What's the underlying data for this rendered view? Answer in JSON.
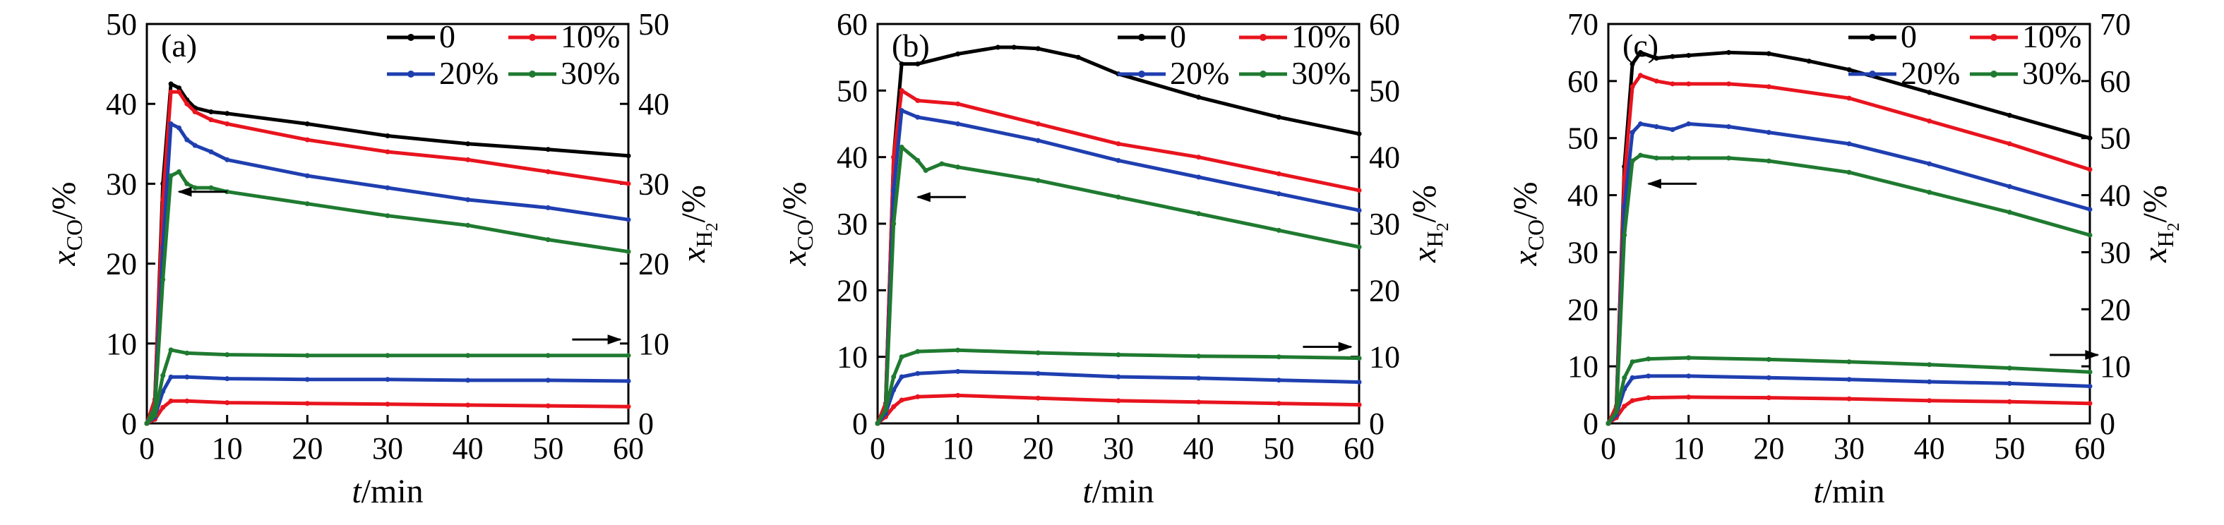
{
  "colors": {
    "s0": "#000000",
    "s10": "#e8141e",
    "s20": "#1f3fb0",
    "s30": "#1f7a30"
  },
  "chart_data": [
    {
      "panel_label": "(a)",
      "type": "line",
      "xlabel": "t/min",
      "ylabel": "xCO/%",
      "ylabel_main": "x",
      "ylabel_sub": "CO",
      "ylabel_tail": "/%",
      "y2label": "xH2/%",
      "y2label_main": "x",
      "y2label_sub": "H",
      "y2label_subsub": "2",
      "y2label_tail": "/%",
      "xlim": [
        0,
        60
      ],
      "ylim": [
        0,
        50
      ],
      "y2lim": [
        0,
        50
      ],
      "xticks": [
        "0",
        "10",
        "20",
        "30",
        "40",
        "50",
        "60"
      ],
      "yticks": [
        "0",
        "10",
        "20",
        "30",
        "40",
        "50"
      ],
      "y2ticks": [
        "0",
        "10",
        "20",
        "30",
        "40",
        "50"
      ],
      "legend": [
        "0",
        "10%",
        "20%",
        "30%"
      ],
      "series_co": [
        {
          "name": "0",
          "x": [
            0,
            1,
            2,
            3,
            4,
            5,
            6,
            8,
            10,
            20,
            30,
            40,
            50,
            60
          ],
          "y": [
            0,
            3,
            30,
            42.5,
            42,
            40.5,
            39.5,
            39,
            38.8,
            37.5,
            36,
            35,
            34.3,
            33.5
          ]
        },
        {
          "name": "10%",
          "x": [
            0,
            1,
            2,
            3,
            4,
            5,
            6,
            8,
            10,
            20,
            30,
            40,
            50,
            60
          ],
          "y": [
            0,
            3,
            28,
            41.5,
            41.5,
            40,
            39,
            38,
            37.5,
            35.5,
            34,
            33,
            31.5,
            30
          ]
        },
        {
          "name": "20%",
          "x": [
            0,
            1,
            2,
            3,
            4,
            5,
            6,
            8,
            10,
            20,
            30,
            40,
            50,
            60
          ],
          "y": [
            0,
            2,
            22,
            37.5,
            37,
            35.5,
            34.8,
            34,
            33,
            31,
            29.5,
            28,
            27,
            25.5
          ]
        },
        {
          "name": "30%",
          "x": [
            0,
            1,
            2,
            3,
            4,
            5,
            6,
            8,
            10,
            20,
            30,
            40,
            50,
            60
          ],
          "y": [
            0,
            2,
            18,
            31,
            31.5,
            30,
            29.5,
            29.5,
            29,
            27.5,
            26,
            24.8,
            23,
            21.5
          ]
        }
      ],
      "series_h2": [
        {
          "name": "10%",
          "x": [
            0,
            1,
            2,
            3,
            5,
            10,
            20,
            30,
            40,
            50,
            60
          ],
          "y": [
            0,
            0.5,
            2,
            2.8,
            2.8,
            2.6,
            2.5,
            2.4,
            2.3,
            2.2,
            2.1
          ]
        },
        {
          "name": "20%",
          "x": [
            0,
            1,
            2,
            3,
            5,
            10,
            20,
            30,
            40,
            50,
            60
          ],
          "y": [
            0,
            0.8,
            4,
            5.8,
            5.8,
            5.6,
            5.5,
            5.5,
            5.4,
            5.4,
            5.3
          ]
        },
        {
          "name": "30%",
          "x": [
            0,
            1,
            2,
            3,
            5,
            10,
            20,
            30,
            40,
            50,
            60
          ],
          "y": [
            0,
            1,
            6,
            9.2,
            8.8,
            8.6,
            8.5,
            8.5,
            8.5,
            8.5,
            8.5
          ]
        }
      ],
      "arrow_left": {
        "x": [
          10,
          4
        ],
        "y": 29
      },
      "arrow_right": {
        "x": 53,
        "y": 10.5
      }
    },
    {
      "panel_label": "(b)",
      "type": "line",
      "xlabel": "t/min",
      "ylabel": "xCO/%",
      "ylabel_main": "x",
      "ylabel_sub": "CO",
      "ylabel_tail": "/%",
      "y2label": "xH2/%",
      "y2label_main": "x",
      "y2label_sub": "H",
      "y2label_subsub": "2",
      "y2label_tail": "/%",
      "xlim": [
        0,
        60
      ],
      "ylim": [
        0,
        60
      ],
      "y2lim": [
        0,
        60
      ],
      "xticks": [
        "0",
        "10",
        "20",
        "30",
        "40",
        "50",
        "60"
      ],
      "yticks": [
        "0",
        "10",
        "20",
        "30",
        "40",
        "50",
        "60"
      ],
      "y2ticks": [
        "0",
        "10",
        "20",
        "30",
        "40",
        "50",
        "60"
      ],
      "legend": [
        "0",
        "10%",
        "20%",
        "30%"
      ],
      "series_co": [
        {
          "name": "0",
          "x": [
            0,
            1,
            2,
            3,
            5,
            10,
            15,
            17,
            20,
            25,
            30,
            40,
            50,
            60
          ],
          "y": [
            0,
            3,
            40,
            54,
            54,
            55.5,
            56.5,
            56.5,
            56.3,
            55,
            52.5,
            49,
            46,
            43.5
          ]
        },
        {
          "name": "10%",
          "x": [
            0,
            1,
            2,
            3,
            5,
            10,
            20,
            30,
            40,
            50,
            60
          ],
          "y": [
            0,
            3,
            40,
            50,
            48.5,
            48,
            45,
            42,
            40,
            37.5,
            35
          ]
        },
        {
          "name": "20%",
          "x": [
            0,
            1,
            2,
            3,
            5,
            10,
            20,
            30,
            40,
            50,
            60
          ],
          "y": [
            0,
            2,
            35,
            47,
            46,
            45,
            42.5,
            39.5,
            37,
            34.5,
            32
          ]
        },
        {
          "name": "30%",
          "x": [
            0,
            1,
            2,
            3,
            5,
            6,
            8,
            10,
            20,
            30,
            40,
            50,
            60
          ],
          "y": [
            0,
            2,
            30,
            41.5,
            39.5,
            38,
            39,
            38.5,
            36.5,
            34,
            31.5,
            29,
            26.5
          ]
        }
      ],
      "series_h2": [
        {
          "name": "10%",
          "x": [
            0,
            1,
            2,
            3,
            5,
            10,
            20,
            30,
            40,
            50,
            60
          ],
          "y": [
            0,
            1,
            2.5,
            3.5,
            4,
            4.2,
            3.8,
            3.4,
            3.2,
            3,
            2.8
          ]
        },
        {
          "name": "20%",
          "x": [
            0,
            1,
            2,
            3,
            5,
            10,
            20,
            30,
            40,
            50,
            60
          ],
          "y": [
            0,
            1.5,
            5,
            7,
            7.5,
            7.8,
            7.5,
            7,
            6.8,
            6.5,
            6.2
          ]
        },
        {
          "name": "30%",
          "x": [
            0,
            1,
            2,
            3,
            5,
            10,
            20,
            30,
            40,
            50,
            60
          ],
          "y": [
            0,
            2,
            7,
            10,
            10.8,
            11,
            10.6,
            10.3,
            10.1,
            10,
            9.8
          ]
        }
      ],
      "arrow_left": {
        "x": [
          11,
          5
        ],
        "y": 34
      },
      "arrow_right": {
        "x": 53,
        "y": 11.5
      }
    },
    {
      "panel_label": "(c)",
      "type": "line",
      "xlabel": "t/min",
      "ylabel": "xCO/%",
      "ylabel_main": "x",
      "ylabel_sub": "CO",
      "ylabel_tail": "/%",
      "y2label": "xH2/%",
      "y2label_main": "x",
      "y2label_sub": "H",
      "y2label_subsub": "2",
      "y2label_tail": "/%",
      "xlim": [
        0,
        60
      ],
      "ylim": [
        0,
        70
      ],
      "y2lim": [
        0,
        70
      ],
      "xticks": [
        "0",
        "10",
        "20",
        "30",
        "40",
        "50",
        "60"
      ],
      "yticks": [
        "0",
        "10",
        "20",
        "30",
        "40",
        "50",
        "60",
        "70"
      ],
      "y2ticks": [
        "0",
        "10",
        "20",
        "30",
        "40",
        "50",
        "60",
        "70"
      ],
      "legend": [
        "0",
        "10%",
        "20%",
        "30%"
      ],
      "series_co": [
        {
          "name": "0",
          "x": [
            0,
            1,
            2,
            3,
            4,
            6,
            8,
            10,
            15,
            20,
            25,
            30,
            40,
            50,
            60
          ],
          "y": [
            0,
            3,
            45,
            63,
            65,
            64,
            64.3,
            64.5,
            65,
            64.8,
            63.5,
            62,
            58,
            54,
            50
          ]
        },
        {
          "name": "10%",
          "x": [
            0,
            1,
            2,
            3,
            4,
            6,
            8,
            10,
            15,
            20,
            30,
            40,
            50,
            60
          ],
          "y": [
            0,
            3,
            43,
            59,
            61,
            60,
            59.5,
            59.5,
            59.5,
            59,
            57,
            53,
            49,
            44.5
          ]
        },
        {
          "name": "20%",
          "x": [
            0,
            1,
            2,
            3,
            4,
            6,
            8,
            10,
            15,
            20,
            30,
            40,
            50,
            60
          ],
          "y": [
            0,
            2,
            38,
            51,
            52.5,
            52,
            51.5,
            52.5,
            52,
            51,
            49,
            45.5,
            41.5,
            37.5
          ]
        },
        {
          "name": "30%",
          "x": [
            0,
            1,
            2,
            3,
            4,
            6,
            8,
            10,
            15,
            20,
            30,
            40,
            50,
            60
          ],
          "y": [
            0,
            2,
            33,
            46,
            47,
            46.5,
            46.5,
            46.5,
            46.5,
            46,
            44,
            40.5,
            37,
            33
          ]
        }
      ],
      "series_h2": [
        {
          "name": "10%",
          "x": [
            0,
            1,
            2,
            3,
            5,
            10,
            20,
            30,
            40,
            50,
            60
          ],
          "y": [
            0,
            1,
            3,
            4,
            4.5,
            4.6,
            4.5,
            4.3,
            4,
            3.8,
            3.5
          ]
        },
        {
          "name": "20%",
          "x": [
            0,
            1,
            2,
            3,
            5,
            10,
            20,
            30,
            40,
            50,
            60
          ],
          "y": [
            0,
            1.5,
            6,
            8,
            8.3,
            8.3,
            8,
            7.7,
            7.3,
            7,
            6.5
          ]
        },
        {
          "name": "30%",
          "x": [
            0,
            1,
            2,
            3,
            5,
            10,
            20,
            30,
            40,
            50,
            60
          ],
          "y": [
            0,
            2,
            8,
            10.8,
            11.3,
            11.5,
            11.2,
            10.8,
            10.3,
            9.7,
            9
          ]
        }
      ],
      "arrow_left": {
        "x": [
          11,
          5
        ],
        "y": 42
      },
      "arrow_right": {
        "x": 55,
        "y": 12
      }
    }
  ]
}
